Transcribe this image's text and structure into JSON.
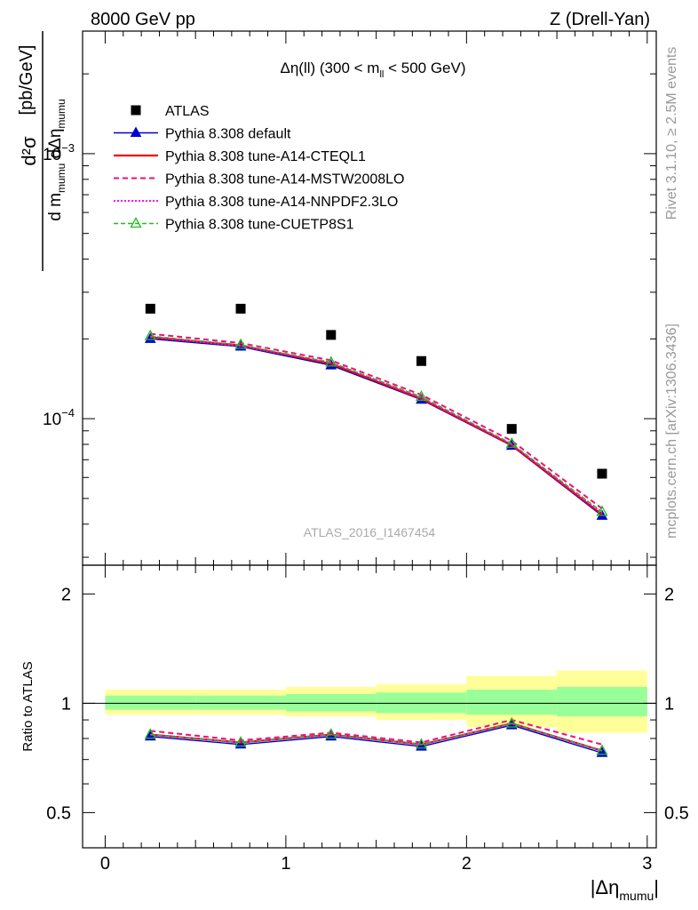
{
  "header": {
    "left": "8000 GeV pp",
    "right": "Z (Drell-Yan)"
  },
  "side_labels": {
    "rivet": "Rivet 3.1.10, ≥ 2.5M events",
    "mcplots": "mcplots.cern.ch [arXiv:1306.3436]"
  },
  "plot_title": {
    "main": "Δη(ll) (300 < m",
    "sub": "ll",
    "rest": " < 500 GeV)"
  },
  "watermark": "ATLAS_2016_I1467454",
  "axes": {
    "ylabel_main": {
      "numerator": "d²σ",
      "denominator": "d m",
      "denominator_sub": "mumu",
      "denominator_mid": " dΔη",
      "denominator_sub2": "mumu",
      "unit": "[pb/GeV]"
    },
    "ylabel_ratio": "Ratio to ATLAS",
    "xlabel_main": "|Δη",
    "xlabel_sub": "mumu",
    "xlabel_end": "|",
    "x_ticks": [
      "0",
      "1",
      "2",
      "3"
    ],
    "y_ticks_main": [
      {
        "base": "10",
        "exp": "−3",
        "value": 0.001
      },
      {
        "base": "10",
        "exp": "−4",
        "value": 0.0001
      }
    ],
    "y_ticks_ratio": [
      "2",
      "1",
      "0.5"
    ],
    "ylim_main": [
      2.8e-05,
      0.0029
    ],
    "ylim_ratio": [
      0.4,
      2.4
    ],
    "xlim": [
      -0.125,
      3.05
    ]
  },
  "legend": [
    {
      "label": "ATLAS",
      "key": "atlas"
    },
    {
      "label": "Pythia 8.308 default",
      "key": "default"
    },
    {
      "label": "Pythia 8.308 tune-A14-CTEQL1",
      "key": "cteql1"
    },
    {
      "label": "Pythia 8.308 tune-A14-MSTW2008LO",
      "key": "mstw"
    },
    {
      "label": "Pythia 8.308 tune-A14-NNPDF2.3LO",
      "key": "nnpdf"
    },
    {
      "label": "Pythia 8.308 tune-CUETP8S1",
      "key": "cuetp"
    }
  ],
  "colors": {
    "atlas": "#000000",
    "default": "#0000cc",
    "cteql1": "#ee0000",
    "mstw": "#ee1177",
    "nnpdf": "#ff00ff",
    "cuetp": "#22bb22",
    "band_inner": "#99ff99",
    "band_outer": "#ffff99"
  },
  "chart_data": {
    "type": "scatter",
    "x": [
      0.25,
      0.75,
      1.25,
      1.75,
      2.25,
      2.75
    ],
    "x_bins": [
      [
        0,
        0.5
      ],
      [
        0.5,
        1.0
      ],
      [
        1.0,
        1.5
      ],
      [
        1.5,
        2.0
      ],
      [
        2.0,
        2.5
      ],
      [
        2.5,
        3.0
      ]
    ],
    "y_scale": "log",
    "ratio_scale": "log",
    "series": [
      {
        "key": "atlas",
        "name": "ATLAS",
        "values": [
          0.00026,
          0.00026,
          0.000207,
          0.000165,
          9.15e-05,
          6.2e-05
        ]
      },
      {
        "key": "default",
        "name": "Pythia 8.308 default",
        "values": [
          0.0002,
          0.000187,
          0.000159,
          0.000118,
          7.9e-05,
          4.3e-05
        ]
      },
      {
        "key": "cteql1",
        "name": "Pythia 8.308 tune-A14-CTEQL1",
        "values": [
          0.000203,
          0.000189,
          0.000161,
          0.000119,
          7.95e-05,
          4.35e-05
        ]
      },
      {
        "key": "mstw",
        "name": "Pythia 8.308 tune-A14-MSTW2008LO",
        "values": [
          0.000209,
          0.000193,
          0.000166,
          0.000123,
          8.25e-05,
          4.58e-05
        ]
      },
      {
        "key": "nnpdf",
        "name": "Pythia 8.308 tune-A14-NNPDF2.3LO",
        "values": [
          0.000204,
          0.000188,
          0.000163,
          0.00012,
          8e-05,
          4.41e-05
        ]
      },
      {
        "key": "cuetp",
        "name": "Pythia 8.308 tune-CUETP8S1",
        "values": [
          0.000205,
          0.00019,
          0.000163,
          0.000121,
          8.05e-05,
          4.45e-05
        ]
      }
    ],
    "ratio_series": [
      {
        "key": "default",
        "values": [
          0.81,
          0.77,
          0.81,
          0.76,
          0.87,
          0.73
        ]
      },
      {
        "key": "cteql1",
        "values": [
          0.82,
          0.78,
          0.82,
          0.77,
          0.88,
          0.74
        ]
      },
      {
        "key": "mstw",
        "values": [
          0.84,
          0.79,
          0.83,
          0.78,
          0.9,
          0.77
        ]
      },
      {
        "key": "nnpdf",
        "values": [
          0.82,
          0.78,
          0.82,
          0.77,
          0.88,
          0.74
        ]
      },
      {
        "key": "cuetp",
        "values": [
          0.82,
          0.78,
          0.82,
          0.77,
          0.88,
          0.74
        ]
      }
    ],
    "ratio_bands": [
      {
        "inner": [
          0.96,
          1.05
        ],
        "outer": [
          0.93,
          1.09
        ]
      },
      {
        "inner": [
          0.96,
          1.05
        ],
        "outer": [
          0.93,
          1.09
        ]
      },
      {
        "inner": [
          0.95,
          1.06
        ],
        "outer": [
          0.92,
          1.11
        ]
      },
      {
        "inner": [
          0.94,
          1.07
        ],
        "outer": [
          0.9,
          1.13
        ]
      },
      {
        "inner": [
          0.93,
          1.09
        ],
        "outer": [
          0.86,
          1.19
        ]
      },
      {
        "inner": [
          0.92,
          1.11
        ],
        "outer": [
          0.83,
          1.23
        ]
      }
    ]
  }
}
